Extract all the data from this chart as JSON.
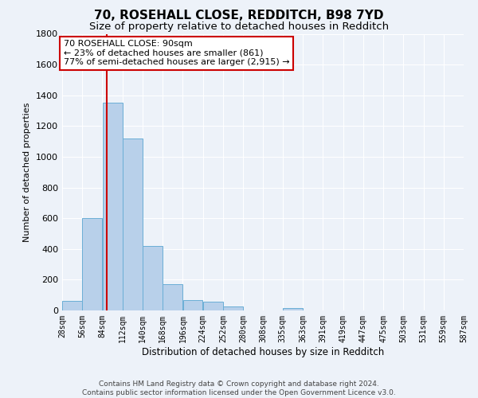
{
  "title1": "70, ROSEHALL CLOSE, REDDITCH, B98 7YD",
  "title2": "Size of property relative to detached houses in Redditch",
  "xlabel": "Distribution of detached houses by size in Redditch",
  "ylabel": "Number of detached properties",
  "footer1": "Contains HM Land Registry data © Crown copyright and database right 2024.",
  "footer2": "Contains public sector information licensed under the Open Government Licence v3.0.",
  "annotation_line1": "70 ROSEHALL CLOSE: 90sqm",
  "annotation_line2": "← 23% of detached houses are smaller (861)",
  "annotation_line3": "77% of semi-detached houses are larger (2,915) →",
  "property_size": 90,
  "bin_edges": [
    28,
    56,
    84,
    112,
    140,
    168,
    196,
    224,
    252,
    280,
    308,
    335,
    363,
    391,
    419,
    447,
    475,
    503,
    531,
    559,
    587
  ],
  "bar_heights": [
    60,
    600,
    1350,
    1120,
    420,
    170,
    65,
    55,
    25,
    0,
    0,
    15,
    0,
    0,
    0,
    0,
    0,
    0,
    0,
    0
  ],
  "bar_color": "#b8d0ea",
  "bar_edge_color": "#6aaed6",
  "red_line_color": "#cc0000",
  "annotation_box_color": "#cc0000",
  "background_color": "#edf2f9",
  "ylim": [
    0,
    1800
  ],
  "yticks": [
    0,
    200,
    400,
    600,
    800,
    1000,
    1200,
    1400,
    1600,
    1800
  ],
  "grid_color": "#ffffff",
  "title1_fontsize": 11,
  "title2_fontsize": 9.5,
  "annotation_fontsize": 8,
  "ylabel_fontsize": 8,
  "xlabel_fontsize": 8.5,
  "footer_fontsize": 6.5,
  "tick_fontsize": 7
}
